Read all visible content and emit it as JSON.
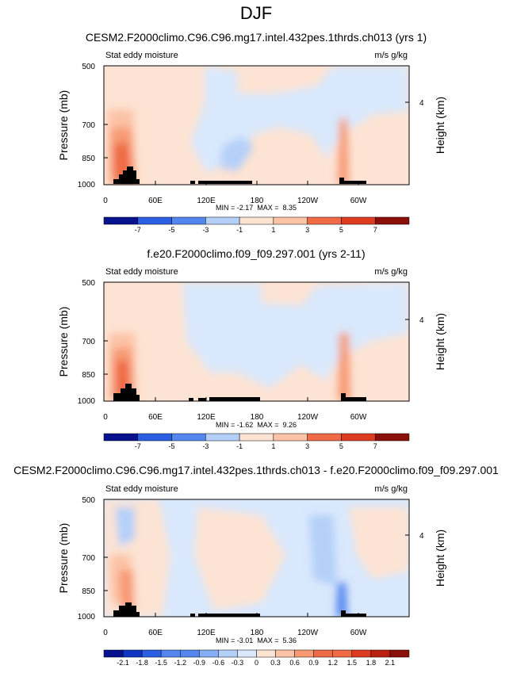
{
  "figure": {
    "title": "DJF"
  },
  "chart_data": [
    {
      "type": "heatmap",
      "title": "CESM2.F2000climo.C96.C96.mg17.intel.432pes.1thrds.ch013 (yrs 1)",
      "left_label": "Stat eddy moisture",
      "right_label": "m/s g/kg",
      "ylabel": "Pressure (mb)",
      "ylabel_right": "Height (km)",
      "xticks": [
        "0",
        "60E",
        "120E",
        "180",
        "120W",
        "60W"
      ],
      "yticks": [
        "500",
        "700",
        "850",
        "1000"
      ],
      "right_ticks": [
        "4"
      ],
      "stats": "MIN = -2.17  MAX =  8.35",
      "colorbar_labels": [
        "-7",
        "-5",
        "-3",
        "-1",
        "1",
        "3",
        "5",
        "7"
      ],
      "xlim": [
        0,
        360
      ],
      "ylim": [
        1000,
        500
      ]
    },
    {
      "type": "heatmap",
      "title": "f.e20.F2000climo.f09_f09.297.001 (yrs 2-11)",
      "left_label": "Stat eddy moisture",
      "right_label": "m/s g/kg",
      "ylabel": "Pressure (mb)",
      "ylabel_right": "Height (km)",
      "xticks": [
        "0",
        "60E",
        "120E",
        "180",
        "120W",
        "60W"
      ],
      "yticks": [
        "500",
        "700",
        "850",
        "1000"
      ],
      "right_ticks": [
        "4"
      ],
      "stats": "MIN = -1.62  MAX =  9.26",
      "colorbar_labels": [
        "-7",
        "-5",
        "-3",
        "-1",
        "1",
        "3",
        "5",
        "7"
      ],
      "xlim": [
        0,
        360
      ],
      "ylim": [
        1000,
        500
      ]
    },
    {
      "type": "heatmap",
      "title": "CESM2.F2000climo.C96.C96.mg17.intel.432pes.1thrds.ch013 - f.e20.F2000climo.f09_f09.297.001",
      "left_label": "Stat eddy moisture",
      "right_label": "m/s g/kg",
      "ylabel": "Pressure (mb)",
      "ylabel_right": "Height (km)",
      "xticks": [
        "0",
        "60E",
        "120E",
        "180",
        "120W",
        "60W"
      ],
      "yticks": [
        "500",
        "700",
        "850",
        "1000"
      ],
      "right_ticks": [
        "4"
      ],
      "stats": "MIN = -3.01  MAX =  5.36",
      "colorbar_labels": [
        "-2.1",
        "-1.8",
        "-1.5",
        "-1.2",
        "-0.9",
        "-0.6",
        "-0.3",
        "0",
        "0.3",
        "0.6",
        "0.9",
        "1.2",
        "1.5",
        "1.8",
        "2.1"
      ],
      "xlim": [
        0,
        360
      ],
      "ylim": [
        1000,
        500
      ]
    }
  ],
  "colors": {
    "palette": [
      "#08128f",
      "#1133c4",
      "#2a5fe3",
      "#5486ef",
      "#84aef6",
      "#b4d0f9",
      "#d9e8fc",
      "#fde3d3",
      "#fcc3a6",
      "#f79a74",
      "#ef6a45",
      "#dd3c20",
      "#bb1f10",
      "#8a0f08"
    ],
    "background": "#ffffff",
    "terrain": "#000000"
  }
}
